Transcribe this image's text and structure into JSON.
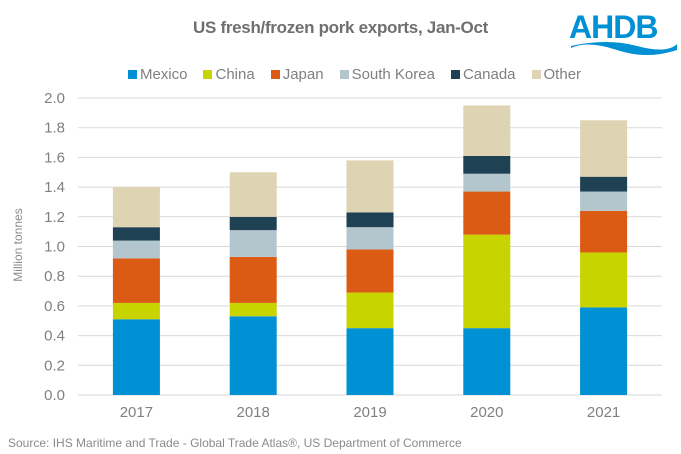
{
  "chart_data": {
    "type": "bar",
    "stacked": true,
    "title": "US fresh/frozen pork exports, Jan-Oct",
    "xlabel": "",
    "ylabel": "Million tonnes",
    "ylim": [
      0,
      2.0
    ],
    "yticks": [
      "0.0",
      "0.2",
      "0.4",
      "0.6",
      "0.8",
      "1.0",
      "1.2",
      "1.4",
      "1.6",
      "1.8",
      "2.0"
    ],
    "grid": true,
    "legend_position": "top",
    "categories": [
      "2017",
      "2018",
      "2019",
      "2020",
      "2021"
    ],
    "series": [
      {
        "name": "Mexico",
        "color": "#0090d4",
        "values": [
          0.51,
          0.53,
          0.45,
          0.45,
          0.59
        ]
      },
      {
        "name": "China",
        "color": "#c8d400",
        "values": [
          0.11,
          0.09,
          0.24,
          0.63,
          0.37
        ]
      },
      {
        "name": "Japan",
        "color": "#db5b14",
        "values": [
          0.3,
          0.31,
          0.29,
          0.29,
          0.28
        ]
      },
      {
        "name": "South Korea",
        "color": "#b3c6ce",
        "values": [
          0.12,
          0.18,
          0.15,
          0.12,
          0.13
        ]
      },
      {
        "name": "Canada",
        "color": "#1e4253",
        "values": [
          0.09,
          0.09,
          0.1,
          0.12,
          0.1
        ]
      },
      {
        "name": "Other",
        "color": "#ded4b4",
        "values": [
          0.27,
          0.3,
          0.35,
          0.34,
          0.38
        ]
      }
    ],
    "source": "Source: IHS Maritime and Trade  - Global Trade  Atlas®, US Department  of Commerce"
  },
  "logo": {
    "text": "AHDB",
    "color": "#0090d4"
  }
}
